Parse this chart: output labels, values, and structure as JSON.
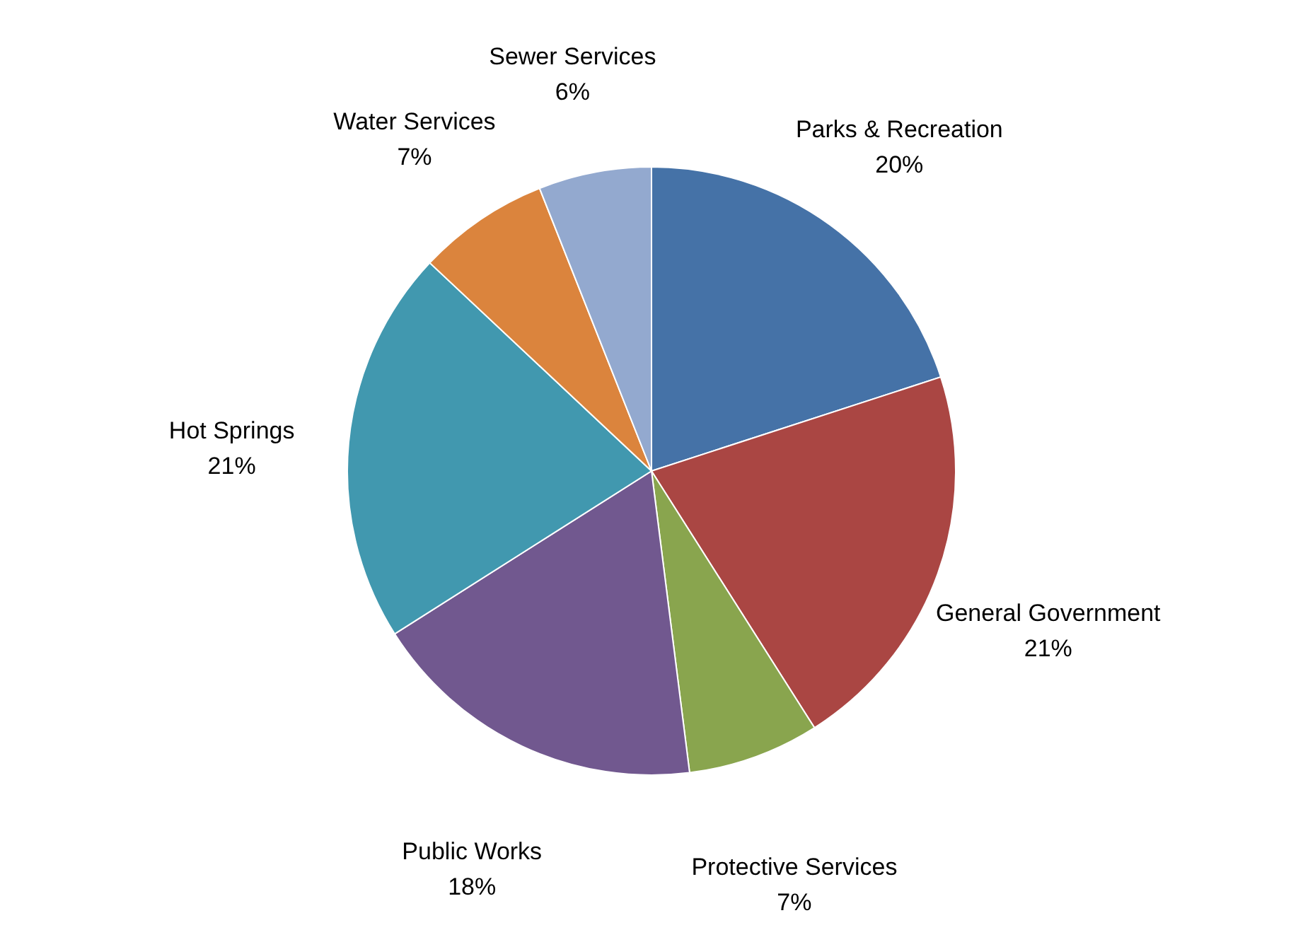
{
  "chart_data": {
    "type": "pie",
    "categories": [
      "Parks & Recreation",
      "General Government",
      "Protective Services",
      "Public Works",
      "Hot Springs",
      "Water Services",
      "Sewer Services"
    ],
    "values": [
      20,
      21,
      7,
      18,
      21,
      7,
      6
    ],
    "colors": [
      "#4572a7",
      "#aa4643",
      "#89a54e",
      "#71588f",
      "#4198af",
      "#db843d",
      "#93a9cf"
    ],
    "value_labels": [
      "20%",
      "21%",
      "7%",
      "18%",
      "21%",
      "7%",
      "6%"
    ]
  }
}
